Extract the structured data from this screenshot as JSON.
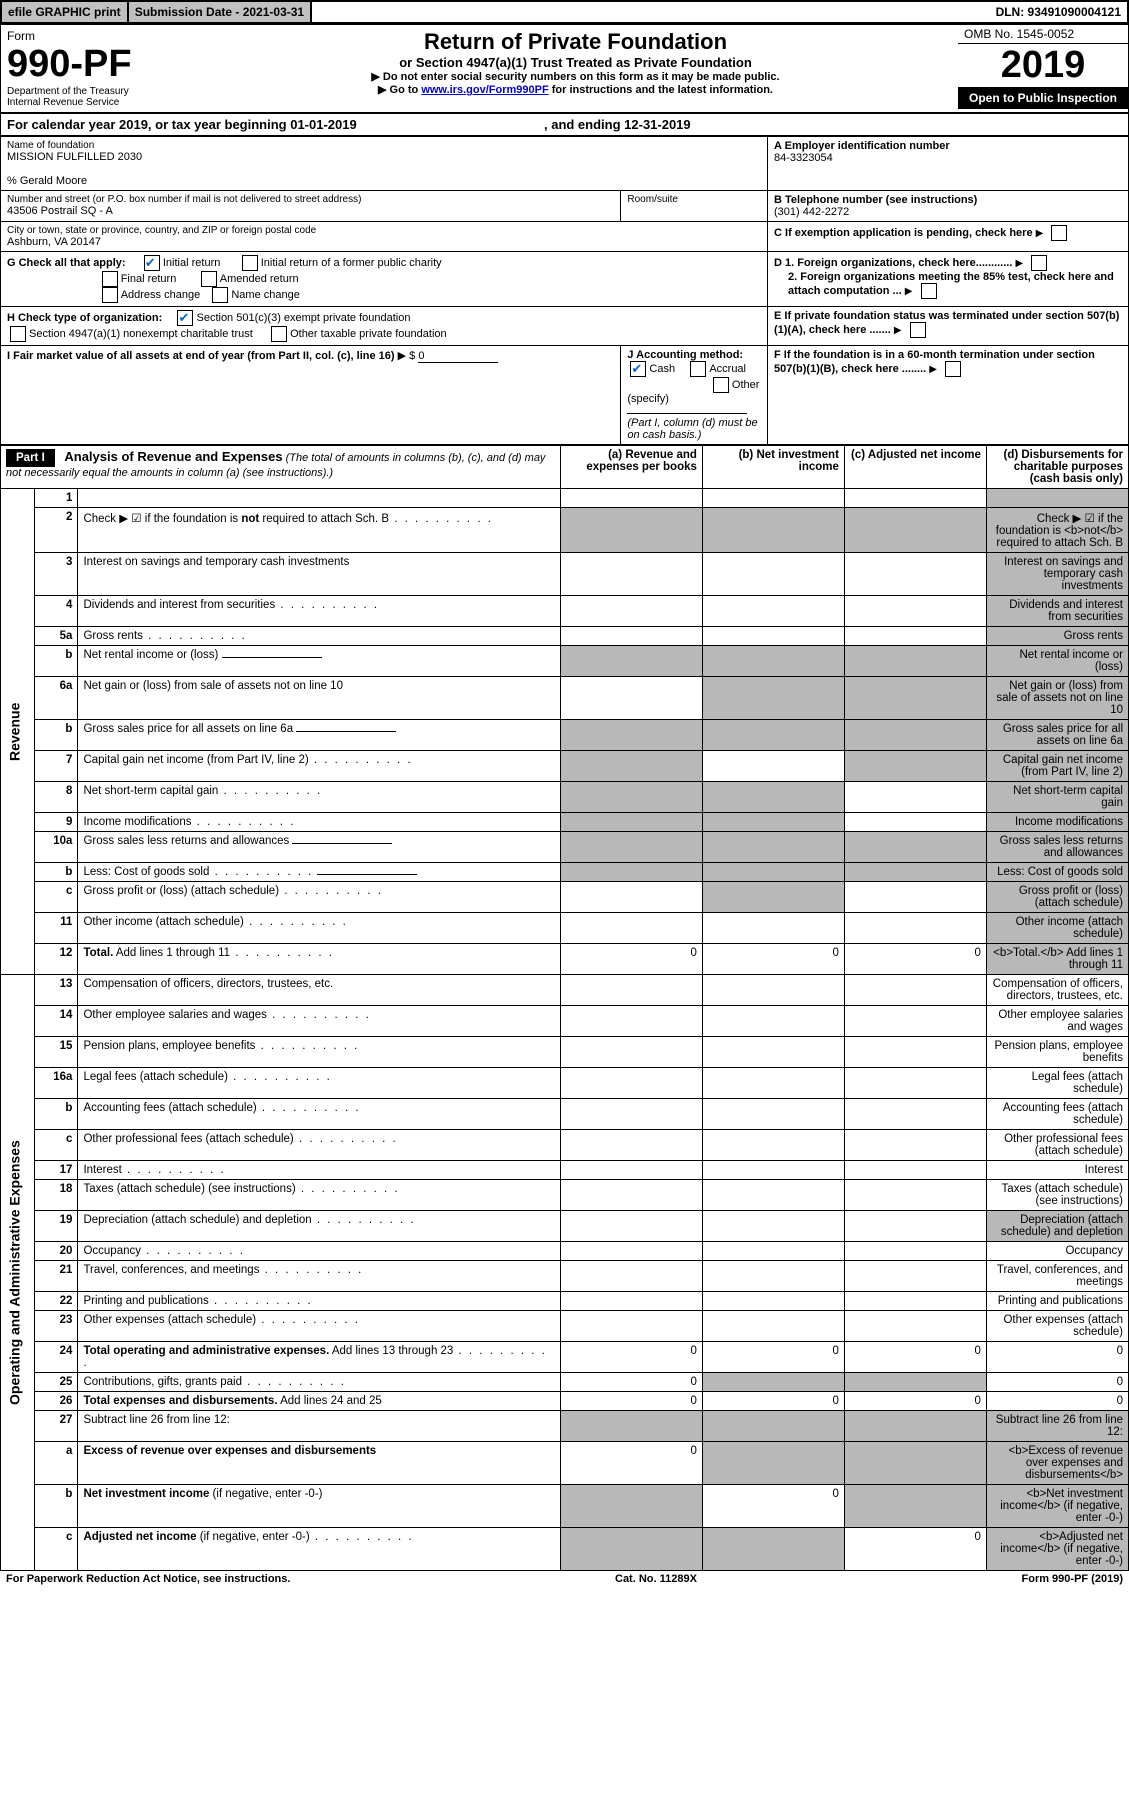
{
  "top": {
    "efile": "efile GRAPHIC print",
    "submission_label": "Submission Date - 2021-03-31",
    "dln": "DLN: 93491090004121"
  },
  "header": {
    "form_word": "Form",
    "form_num": "990-PF",
    "dept": "Department of the Treasury",
    "irs": "Internal Revenue Service",
    "title": "Return of Private Foundation",
    "subtitle": "or Section 4947(a)(1) Trust Treated as Private Foundation",
    "warn": "▶ Do not enter social security numbers on this form as it may be made public.",
    "goto_pre": "▶ Go to ",
    "goto_link": "www.irs.gov/Form990PF",
    "goto_post": " for instructions and the latest information.",
    "omb": "OMB No. 1545-0052",
    "year": "2019",
    "open": "Open to Public Inspection"
  },
  "cal": {
    "line": "For calendar year 2019, or tax year beginning 01-01-2019",
    "end": ", and ending 12-31-2019"
  },
  "info": {
    "name_label": "Name of foundation",
    "name": "MISSION FULFILLED 2030",
    "care_of": "% Gerald Moore",
    "addr_label": "Number and street (or P.O. box number if mail is not delivered to street address)",
    "addr": "43506 Postrail SQ - A",
    "room_label": "Room/suite",
    "city_label": "City or town, state or province, country, and ZIP or foreign postal code",
    "city": "Ashburn, VA  20147",
    "a_ein_label": "A Employer identification number",
    "a_ein": "84-3323054",
    "b_tel_label": "B Telephone number (see instructions)",
    "b_tel": "(301) 442-2272",
    "c_label": "C If exemption application is pending, check here",
    "g_label": "G Check all that apply:",
    "g_initial": "Initial return",
    "g_initial_former": "Initial return of a former public charity",
    "g_final": "Final return",
    "g_amended": "Amended return",
    "g_addr_change": "Address change",
    "g_name_change": "Name change",
    "d1": "D 1. Foreign organizations, check here............",
    "d2": "2. Foreign organizations meeting the 85% test, check here and attach computation ...",
    "h_label": "H Check type of organization:",
    "h_501": "Section 501(c)(3) exempt private foundation",
    "h_4947": "Section 4947(a)(1) nonexempt charitable trust",
    "h_other": "Other taxable private foundation",
    "e_label": "E If private foundation status was terminated under section 507(b)(1)(A), check here .......",
    "i_label": "I Fair market value of all assets at end of year (from Part II, col. (c), line 16)",
    "i_val_prefix": "▶ $",
    "i_val": "0",
    "j_label": "J Accounting method:",
    "j_cash": "Cash",
    "j_accrual": "Accrual",
    "j_other": "Other (specify)",
    "j_note": "(Part I, column (d) must be on cash basis.)",
    "f_label": "F  If the foundation is in a 60-month termination under section 507(b)(1)(B), check here ........"
  },
  "part1": {
    "label": "Part I",
    "head": "Analysis of Revenue and Expenses",
    "head_note": " (The total of amounts in columns (b), (c), and (d) may not necessarily equal the amounts in column (a) (see instructions).)",
    "col_a": "(a) Revenue and expenses per books",
    "col_b": "(b) Net investment income",
    "col_c": "(c) Adjusted net income",
    "col_d": "(d) Disbursements for charitable purposes (cash basis only)",
    "side_revenue": "Revenue",
    "side_opex": "Operating and Administrative Expenses",
    "rows": [
      {
        "n": "1",
        "d": "",
        "a": "",
        "b": "",
        "c": "",
        "shade": [
          "d"
        ]
      },
      {
        "n": "2",
        "d": "Check ▶ ☑ if the foundation is <b>not</b> required to attach Sch. B",
        "dots": true,
        "shade": [
          "a",
          "b",
          "c",
          "d"
        ]
      },
      {
        "n": "3",
        "d": "Interest on savings and temporary cash investments",
        "shade": [
          "d"
        ]
      },
      {
        "n": "4",
        "d": "Dividends and interest from securities",
        "dots": true,
        "shade": [
          "d"
        ]
      },
      {
        "n": "5a",
        "d": "Gross rents",
        "dots": true,
        "shade": [
          "d"
        ]
      },
      {
        "n": "b",
        "d": "Net rental income or (loss)",
        "shade": [
          "a",
          "b",
          "c",
          "d"
        ],
        "input_line": true
      },
      {
        "n": "6a",
        "d": "Net gain or (loss) from sale of assets not on line 10",
        "shade": [
          "b",
          "c",
          "d"
        ]
      },
      {
        "n": "b",
        "d": "Gross sales price for all assets on line 6a",
        "shade": [
          "a",
          "b",
          "c",
          "d"
        ],
        "input_line": true
      },
      {
        "n": "7",
        "d": "Capital gain net income (from Part IV, line 2)",
        "dots": true,
        "shade": [
          "a",
          "c",
          "d"
        ]
      },
      {
        "n": "8",
        "d": "Net short-term capital gain",
        "dots": true,
        "shade": [
          "a",
          "b",
          "d"
        ]
      },
      {
        "n": "9",
        "d": "Income modifications",
        "dots": true,
        "shade": [
          "a",
          "b",
          "d"
        ]
      },
      {
        "n": "10a",
        "d": "Gross sales less returns and allowances",
        "shade": [
          "a",
          "b",
          "c",
          "d"
        ],
        "input_line": true
      },
      {
        "n": "b",
        "d": "Less: Cost of goods sold",
        "dots": true,
        "shade": [
          "a",
          "b",
          "c",
          "d"
        ],
        "input_line": true
      },
      {
        "n": "c",
        "d": "Gross profit or (loss) (attach schedule)",
        "dots": true,
        "shade": [
          "b",
          "d"
        ]
      },
      {
        "n": "11",
        "d": "Other income (attach schedule)",
        "dots": true,
        "shade": [
          "d"
        ]
      },
      {
        "n": "12",
        "d": "<b>Total.</b> Add lines 1 through 11",
        "dots": true,
        "a": "0",
        "b": "0",
        "c": "0",
        "shade": [
          "d"
        ]
      },
      {
        "n": "13",
        "d": "Compensation of officers, directors, trustees, etc."
      },
      {
        "n": "14",
        "d": "Other employee salaries and wages",
        "dots": true
      },
      {
        "n": "15",
        "d": "Pension plans, employee benefits",
        "dots": true
      },
      {
        "n": "16a",
        "d": "Legal fees (attach schedule)",
        "dots": true
      },
      {
        "n": "b",
        "d": "Accounting fees (attach schedule)",
        "dots": true
      },
      {
        "n": "c",
        "d": "Other professional fees (attach schedule)",
        "dots": true
      },
      {
        "n": "17",
        "d": "Interest",
        "dots": true
      },
      {
        "n": "18",
        "d": "Taxes (attach schedule) (see instructions)",
        "dots": true
      },
      {
        "n": "19",
        "d": "Depreciation (attach schedule) and depletion",
        "dots": true,
        "shade": [
          "d"
        ]
      },
      {
        "n": "20",
        "d": "Occupancy",
        "dots": true
      },
      {
        "n": "21",
        "d": "Travel, conferences, and meetings",
        "dots": true
      },
      {
        "n": "22",
        "d": "Printing and publications",
        "dots": true
      },
      {
        "n": "23",
        "d": "Other expenses (attach schedule)",
        "dots": true
      },
      {
        "n": "24",
        "d": "<b>Total operating and administrative expenses.</b> Add lines 13 through 23",
        "dots": true,
        "a": "0",
        "b": "0",
        "c": "0",
        "dd": "0"
      },
      {
        "n": "25",
        "d": "Contributions, gifts, grants paid",
        "dots": true,
        "a": "0",
        "shade": [
          "b",
          "c"
        ],
        "dd": "0"
      },
      {
        "n": "26",
        "d": "<b>Total expenses and disbursements.</b> Add lines 24 and 25",
        "a": "0",
        "b": "0",
        "c": "0",
        "dd": "0"
      },
      {
        "n": "27",
        "d": "Subtract line 26 from line 12:",
        "shade": [
          "a",
          "b",
          "c",
          "d"
        ]
      },
      {
        "n": "a",
        "d": "<b>Excess of revenue over expenses and disbursements</b>",
        "a": "0",
        "shade": [
          "b",
          "c",
          "d"
        ]
      },
      {
        "n": "b",
        "d": "<b>Net investment income</b> (if negative, enter -0-)",
        "shade": [
          "a",
          "c",
          "d"
        ],
        "b": "0"
      },
      {
        "n": "c",
        "d": "<b>Adjusted net income</b> (if negative, enter -0-)",
        "dots": true,
        "shade": [
          "a",
          "b",
          "d"
        ],
        "c": "0"
      }
    ]
  },
  "footer": {
    "left": "For Paperwork Reduction Act Notice, see instructions.",
    "mid": "Cat. No. 11289X",
    "right": "Form 990-PF (2019)"
  },
  "colors": {
    "shade": "#b8b8b8",
    "link": "#0000cc",
    "check": "#0066cc"
  }
}
